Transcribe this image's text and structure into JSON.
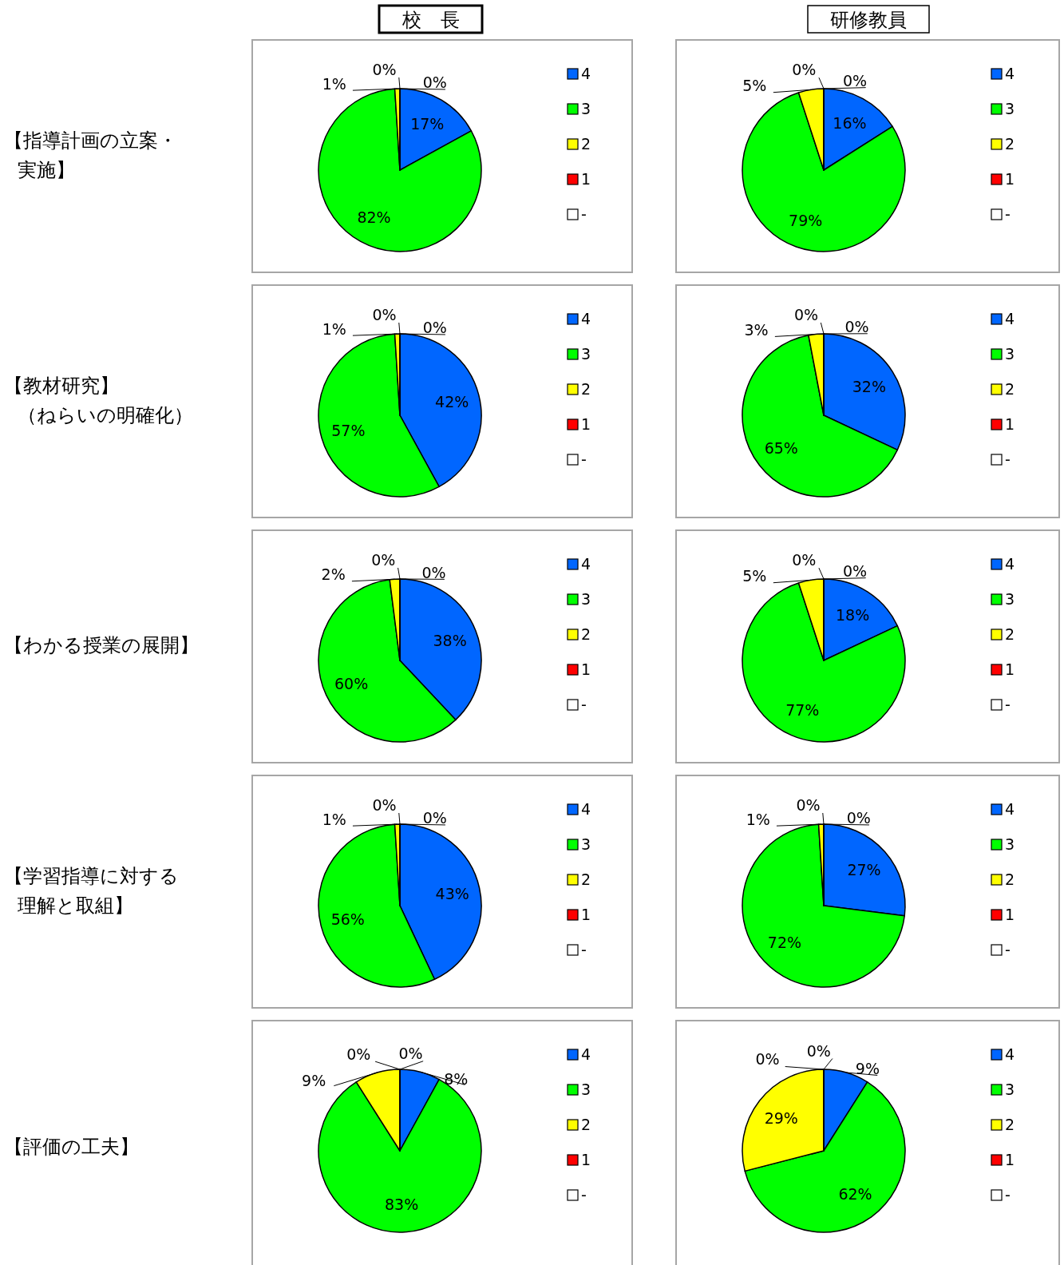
{
  "chart_data": [
    {
      "type": "pie",
      "title": "校　長",
      "annotations": [
        "【指導計画の立案・",
        "実施】"
      ],
      "categories": [
        "4",
        "3",
        "2",
        "1",
        "-"
      ],
      "values": [
        17,
        82,
        1,
        0,
        0
      ],
      "value_labels": [
        "17%",
        "82%",
        "1%",
        "0%",
        "0%"
      ],
      "colors": [
        "#0066ff",
        "#00ff00",
        "#ffff00",
        "#ff0000",
        "#ffffff"
      ],
      "legend": "right"
    },
    {
      "type": "pie",
      "title": "研修教員",
      "categories": [
        "4",
        "3",
        "2",
        "1",
        "-"
      ],
      "values": [
        16,
        79,
        5,
        0,
        0
      ],
      "value_labels": [
        "16%",
        "79%",
        "5%",
        "0%",
        "0%"
      ],
      "colors": [
        "#0066ff",
        "#00ff00",
        "#ffff00",
        "#ff0000",
        "#ffffff"
      ],
      "legend": "right"
    },
    {
      "type": "pie",
      "annotations": [
        "【教材研究】",
        "（ねらいの明確化）"
      ],
      "categories": [
        "4",
        "3",
        "2",
        "1",
        "-"
      ],
      "values": [
        42,
        57,
        1,
        0,
        0
      ],
      "value_labels": [
        "42%",
        "57%",
        "1%",
        "0%",
        "0%"
      ],
      "colors": [
        "#0066ff",
        "#00ff00",
        "#ffff00",
        "#ff0000",
        "#ffffff"
      ],
      "legend": "right"
    },
    {
      "type": "pie",
      "categories": [
        "4",
        "3",
        "2",
        "1",
        "-"
      ],
      "values": [
        32,
        65,
        3,
        0,
        0
      ],
      "value_labels": [
        "32%",
        "65%",
        "3%",
        "0%",
        "0%"
      ],
      "colors": [
        "#0066ff",
        "#00ff00",
        "#ffff00",
        "#ff0000",
        "#ffffff"
      ],
      "legend": "right"
    },
    {
      "type": "pie",
      "annotations": [
        "【わかる授業の展開】"
      ],
      "categories": [
        "4",
        "3",
        "2",
        "1",
        "-"
      ],
      "values": [
        38,
        60,
        2,
        0,
        0
      ],
      "value_labels": [
        "38%",
        "60%",
        "2%",
        "0%",
        "0%"
      ],
      "colors": [
        "#0066ff",
        "#00ff00",
        "#ffff00",
        "#ff0000",
        "#ffffff"
      ],
      "legend": "right"
    },
    {
      "type": "pie",
      "categories": [
        "4",
        "3",
        "2",
        "1",
        "-"
      ],
      "values": [
        18,
        77,
        5,
        0,
        0
      ],
      "value_labels": [
        "18%",
        "77%",
        "5%",
        "0%",
        "0%"
      ],
      "colors": [
        "#0066ff",
        "#00ff00",
        "#ffff00",
        "#ff0000",
        "#ffffff"
      ],
      "legend": "right"
    },
    {
      "type": "pie",
      "annotations": [
        "【学習指導に対する",
        "理解と取組】"
      ],
      "categories": [
        "4",
        "3",
        "2",
        "1",
        "-"
      ],
      "values": [
        43,
        56,
        1,
        0,
        0
      ],
      "value_labels": [
        "43%",
        "56%",
        "1%",
        "0%",
        "0%"
      ],
      "colors": [
        "#0066ff",
        "#00ff00",
        "#ffff00",
        "#ff0000",
        "#ffffff"
      ],
      "legend": "right"
    },
    {
      "type": "pie",
      "categories": [
        "4",
        "3",
        "2",
        "1",
        "-"
      ],
      "values": [
        27,
        72,
        1,
        0,
        0
      ],
      "value_labels": [
        "27%",
        "72%",
        "1%",
        "0%",
        "0%"
      ],
      "colors": [
        "#0066ff",
        "#00ff00",
        "#ffff00",
        "#ff0000",
        "#ffffff"
      ],
      "legend": "right"
    },
    {
      "type": "pie",
      "annotations": [
        "【評価の工夫】"
      ],
      "categories": [
        "4",
        "3",
        "2",
        "1",
        "-"
      ],
      "values": [
        8,
        83,
        9,
        0,
        0
      ],
      "value_labels": [
        "8%",
        "83%",
        "9%",
        "0%",
        "0%"
      ],
      "colors": [
        "#0066ff",
        "#00ff00",
        "#ffff00",
        "#ff0000",
        "#ffffff"
      ],
      "legend": "right"
    },
    {
      "type": "pie",
      "categories": [
        "4",
        "3",
        "2",
        "1",
        "-"
      ],
      "values": [
        9,
        62,
        29,
        0,
        0
      ],
      "value_labels": [
        "9%",
        "62%",
        "29%",
        "0%",
        "0%"
      ],
      "colors": [
        "#0066ff",
        "#00ff00",
        "#ffff00",
        "#ff0000",
        "#ffffff"
      ],
      "legend": "right"
    }
  ]
}
